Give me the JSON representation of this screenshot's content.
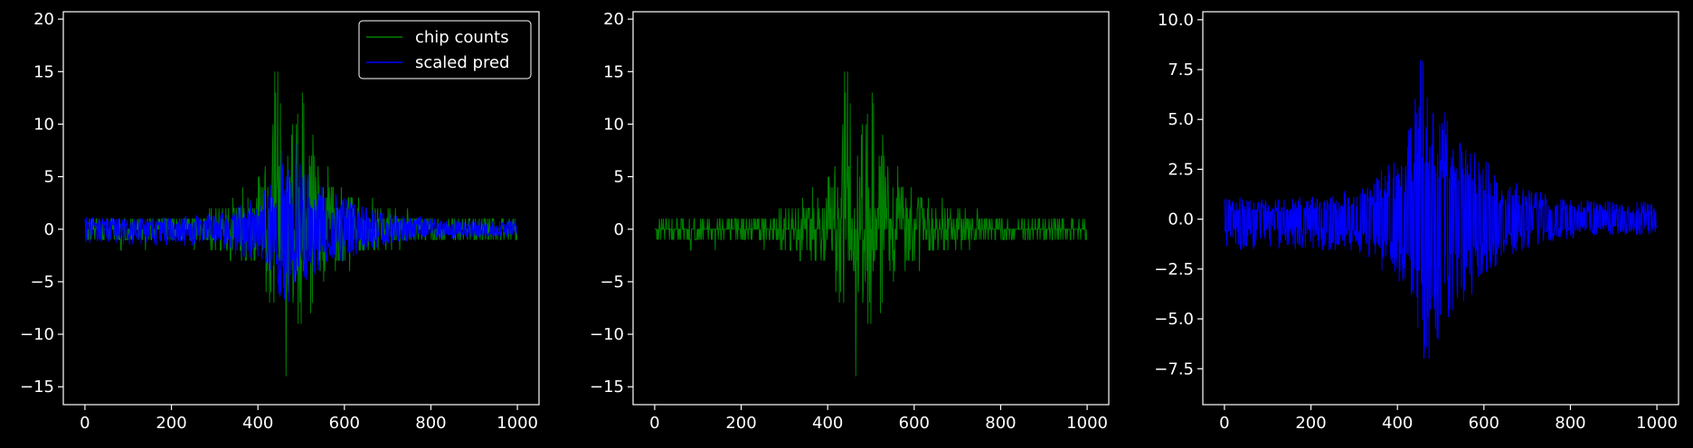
{
  "figure": {
    "background": "#000000",
    "foreground": "#ffffff"
  },
  "colors": {
    "counts": "#008000",
    "pred": "#0000ff"
  },
  "chart_data": [
    {
      "type": "line",
      "title": "",
      "xlabel": "",
      "ylabel": "",
      "xlim": [
        -50,
        1050
      ],
      "ylim": [
        -16.7,
        20.7
      ],
      "xticks": [
        0,
        200,
        400,
        600,
        800,
        1000
      ],
      "yticks": [
        -15,
        -10,
        -5,
        0,
        5,
        10,
        15,
        20
      ],
      "legend": {
        "placement": "top-right",
        "entries": [
          "chip counts",
          "scaled pred"
        ]
      },
      "grid": false,
      "n_points": 1000,
      "series": [
        {
          "name": "chip counts",
          "color": "#008000",
          "kind": "counts",
          "envelope": {
            "x": [
              0,
              100,
              200,
              300,
              350,
              400,
              430,
              445,
              455,
              465,
              480,
              500,
              520,
              550,
              600,
              650,
              700,
              800,
              900,
              1000
            ],
            "upper": [
              1,
              1,
              1,
              2,
              3,
              5,
              9,
              19,
              19,
              12,
              12,
              15,
              10,
              7,
              4,
              3,
              2,
              1,
              1,
              1
            ],
            "lower": [
              -1,
              -2,
              -1,
              -2,
              -3,
              -5,
              -8,
              -7,
              -10,
              -15,
              -10,
              -9,
              -12,
              -9,
              -5,
              -3,
              -2,
              -1,
              -1,
              -1
            ]
          }
        },
        {
          "name": "scaled pred",
          "color": "#0000ff",
          "kind": "pred",
          "envelope": {
            "x": [
              0,
              100,
              200,
              300,
              350,
              400,
              430,
              450,
              460,
              470,
              480,
              490,
              500,
              520,
              550,
              600,
              650,
              700,
              800,
              900,
              1000
            ],
            "upper": [
              1.2,
              1,
              1.2,
              1.5,
              2.2,
              3.2,
              5,
              7.5,
              9.4,
              6,
              5,
              8.7,
              6,
              5,
              4,
              3,
              2.2,
              1.5,
              1.1,
              0.9,
              0.9
            ],
            "lower": [
              -1.5,
              -1.5,
              -1.6,
              -1.6,
              -2.5,
              -3,
              -4.5,
              -6.5,
              -8.2,
              -7.5,
              -6,
              -6.5,
              -5.5,
              -5,
              -4.5,
              -3,
              -2,
              -1.5,
              -1,
              -0.8,
              -0.8
            ]
          }
        }
      ]
    },
    {
      "type": "line",
      "title": "",
      "xlabel": "",
      "ylabel": "",
      "xlim": [
        -50,
        1050
      ],
      "ylim": [
        -16.7,
        20.7
      ],
      "xticks": [
        0,
        200,
        400,
        600,
        800,
        1000
      ],
      "yticks": [
        -15,
        -10,
        -5,
        0,
        5,
        10,
        15,
        20
      ],
      "grid": false,
      "n_points": 1000,
      "series": [
        {
          "color": "#008000",
          "kind": "counts",
          "envelope": {
            "x": [
              0,
              100,
              200,
              300,
              350,
              400,
              430,
              445,
              455,
              465,
              480,
              500,
              520,
              550,
              600,
              650,
              700,
              800,
              900,
              1000
            ],
            "upper": [
              1,
              1,
              1,
              2,
              3,
              5,
              9,
              19,
              19,
              12,
              12,
              15,
              10,
              7,
              4,
              3,
              2,
              1,
              1,
              1
            ],
            "lower": [
              -1,
              -2,
              -1,
              -2,
              -3,
              -5,
              -8,
              -7,
              -10,
              -15,
              -10,
              -9,
              -12,
              -9,
              -5,
              -3,
              -2,
              -1,
              -1,
              -1
            ]
          }
        }
      ]
    },
    {
      "type": "line",
      "title": "",
      "xlabel": "",
      "ylabel": "",
      "xlim": [
        -50,
        1050
      ],
      "ylim": [
        -9.3,
        10.4
      ],
      "xticks": [
        0,
        200,
        400,
        600,
        800,
        1000
      ],
      "yticks": [
        -7.5,
        -5.0,
        -2.5,
        0.0,
        2.5,
        5.0,
        7.5,
        10.0
      ],
      "grid": false,
      "n_points": 1000,
      "series": [
        {
          "color": "#0000ff",
          "kind": "pred",
          "envelope": {
            "x": [
              0,
              100,
              200,
              300,
              350,
              400,
              430,
              450,
              460,
              470,
              480,
              490,
              500,
              520,
              550,
              600,
              650,
              700,
              800,
              900,
              1000
            ],
            "upper": [
              1.2,
              1,
              1.2,
              1.5,
              2.2,
              3.2,
              5,
              7.5,
              9.4,
              6,
              5,
              8.7,
              6,
              5,
              4,
              3,
              2.2,
              1.5,
              1.1,
              0.9,
              0.9
            ],
            "lower": [
              -1.5,
              -1.5,
              -1.6,
              -1.6,
              -2.5,
              -3,
              -4.5,
              -6.5,
              -8.2,
              -7.5,
              -6,
              -6.5,
              -5.5,
              -5,
              -4.5,
              -3,
              -2,
              -1.5,
              -1,
              -0.8,
              -0.8
            ]
          }
        }
      ]
    }
  ]
}
